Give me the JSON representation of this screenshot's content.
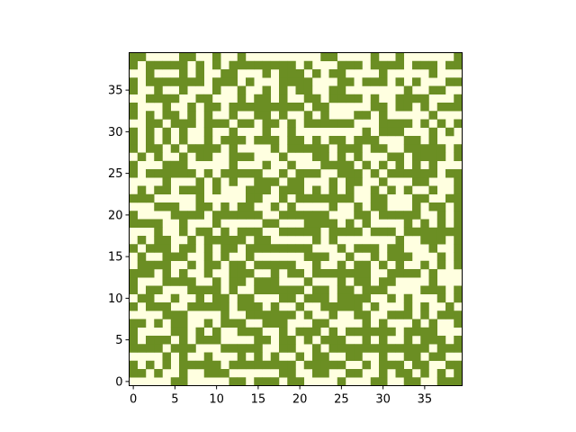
{
  "chart_data": {
    "type": "heatmap",
    "title": "",
    "xlabel": "",
    "ylabel": "",
    "grid": false,
    "origin": "lower",
    "xlim": [
      -0.5,
      39.5
    ],
    "ylim": [
      -0.5,
      39.5
    ],
    "x_ticks": [
      0,
      5,
      10,
      15,
      20,
      25,
      30,
      35
    ],
    "y_ticks": [
      0,
      5,
      10,
      15,
      20,
      25,
      30,
      35
    ],
    "colors": {
      "0": "#ffffe0",
      "1": "#6b8e23"
    },
    "legend": "none",
    "rows_top_to_bottom": [
      "1100001100100100000000011000010010000001",
      "1011111010101111111101000111011110111011",
      "0010001010011000101110101100001000001000",
      "1011111110111010001111000110111010100011",
      "1001001000100100101011001100000001001100",
      "0011110011000101101001101111010011110001",
      "1000100101101111111110110000011011010111",
      "1010110101001001101001010001101000001000",
      "0011011101110110110101111110001111010101",
      "1010101001001000100100000000101110001010",
      "1010101001011101110110101101110001101000",
      "1011010111101000010111110111011001111101",
      "0101001011001110001000110101000110111101",
      "1000111000001000100100011110101010101000",
      "1011111101011111001011100111010111111011",
      "0000100010101001110110001011001000110001",
      "0101101110100011101110101010010101001001",
      "1110000010000011001011111110011000110011",
      "0001110011010110010100001001011000101101",
      "1000011110111111001111110001101111100101",
      "1111001000100000110001111010100001010101",
      "0001001011010111001111101111011101111111",
      "0101100101111101100000101000000010011101",
      "1011101101011011111111000101110110001001",
      "0100111001010010000001110010010111000101",
      "0111100101101101111100100101101010010101",
      "1110101001001110010110111111100111101000",
      "1000111100101101110001000101101100001000",
      "1011000111101001111110110110111000011101",
      "0110010010110110001101110111100101000101",
      "1011100111110111010010011111010001010010",
      "0000111000010011111101001001100111010111",
      "1101011001011100111000110000101000101001",
      "1000011010100111001011101011111101111000",
      "1011101011100001101101011100101001011101",
      "1111011100011111001100101111111111110111",
      "0000101001000101010010110011001001101100",
      "1010101111101111111101111100101110110011",
      "1101001001110000001100110011001011010101",
      "0000011000001101110110000100011001100111"
    ]
  }
}
